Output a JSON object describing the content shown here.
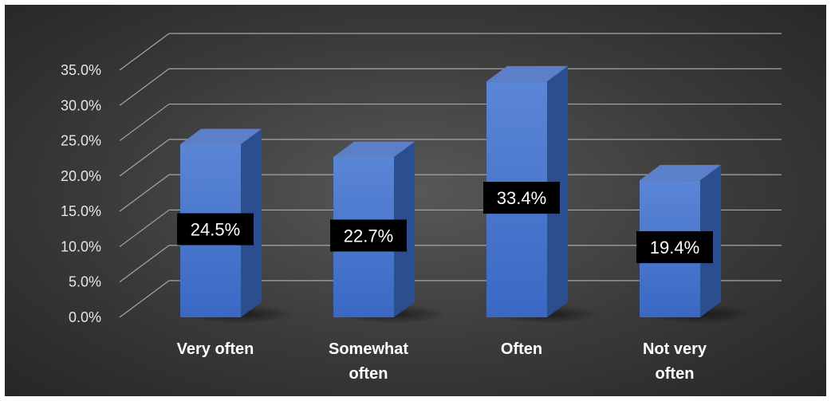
{
  "chart_data": {
    "type": "bar",
    "three_d": true,
    "categories": [
      [
        "Very often"
      ],
      [
        "Somewhat",
        "often"
      ],
      [
        "Often"
      ],
      [
        "Not very",
        "often"
      ]
    ],
    "values": [
      24.5,
      22.7,
      33.4,
      19.4
    ],
    "data_labels": [
      "24.5%",
      "22.7%",
      "33.4%",
      "19.4%"
    ],
    "ylim": [
      0,
      35
    ],
    "y_ticks": [
      "0.0%",
      "5.0%",
      "10.0%",
      "15.0%",
      "20.0%",
      "25.0%",
      "30.0%",
      "35.0%"
    ],
    "grid": true,
    "legend": "none",
    "title": "",
    "xlabel": "",
    "ylabel": "",
    "colors": {
      "bar_front": "#4472c4",
      "bar_side": "#2b4f8e",
      "bar_top": "#5b80c9",
      "grid": "#a6a6a6",
      "label_bg": "#000000"
    }
  }
}
